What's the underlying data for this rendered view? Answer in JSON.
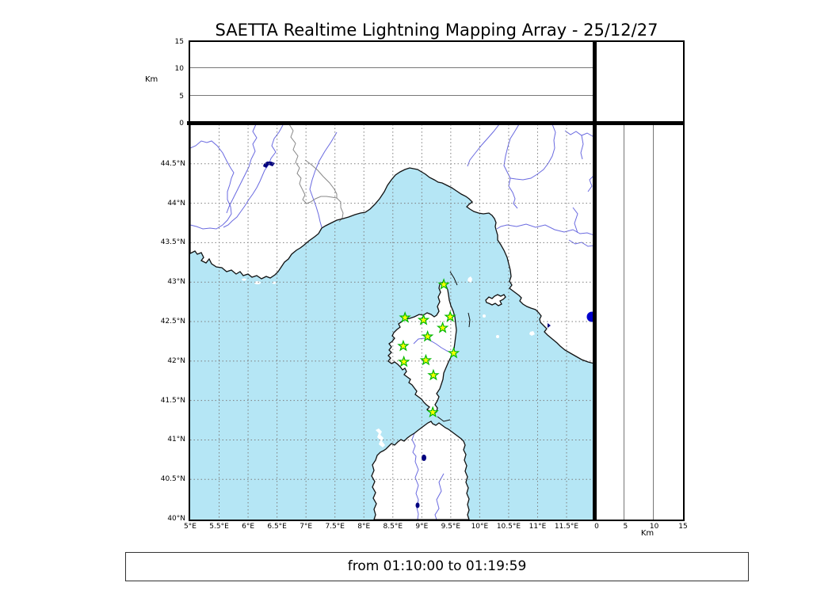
{
  "title": "SAETTA Realtime Lightning Mapping Array - 25/12/27",
  "footer": {
    "time_range_label": "from 01:10:00 to 01:19:59"
  },
  "colors": {
    "sea": "#b5e6f5",
    "land": "#ffffff",
    "coastline": "#111111",
    "river": "#6a6ae0",
    "country_border": "#888888",
    "gridline": "#7e7e7e",
    "panel_gridline": "#777777",
    "lake": "#000080",
    "lake_bolsena_dot": "#0000cc",
    "station_fill": "#ffff00",
    "station_edge": "#00b800"
  },
  "chart_data": {
    "type": "scatter",
    "title": "SAETTA Realtime Lightning Mapping Array - 25/12/27",
    "time_window": "from 01:10:00 to 01:19:59",
    "map_panel": {
      "lon_range": [
        5,
        12
      ],
      "lat_range": [
        40,
        45
      ],
      "grid": true,
      "lon_ticks": [
        5,
        5.5,
        6,
        6.5,
        7,
        7.5,
        8,
        8.5,
        9,
        9.5,
        10,
        10.5,
        11,
        11.5
      ],
      "lon_tick_labels": [
        "5°E",
        "5.5°E",
        "6°E",
        "6.5°E",
        "7°E",
        "7.5°E",
        "8°E",
        "8.5°E",
        "9°E",
        "9.5°E",
        "10°E",
        "10.5°E",
        "11°E",
        "11.5°E"
      ],
      "lat_ticks": [
        44.5,
        44,
        43.5,
        43,
        42.5,
        42,
        41.5,
        41,
        40.5,
        40
      ],
      "lat_tick_labels": [
        "44.5°N",
        "44°N",
        "43.5°N",
        "43°N",
        "42.5°N",
        "42°N",
        "41.5°N",
        "41°N",
        "40.5°N",
        "40°N"
      ]
    },
    "altitude_axes": {
      "unit_label": "Km",
      "range": [
        0,
        15
      ],
      "ticks": [
        0,
        5,
        10,
        15
      ],
      "tick_labels": [
        "0",
        "5",
        "10",
        "15"
      ],
      "gridlines_km": [
        5,
        10
      ]
    },
    "stations": [
      {
        "lon": 9.38,
        "lat": 42.97
      },
      {
        "lon": 8.71,
        "lat": 42.55
      },
      {
        "lon": 9.03,
        "lat": 42.52
      },
      {
        "lon": 9.49,
        "lat": 42.56
      },
      {
        "lon": 9.36,
        "lat": 42.42
      },
      {
        "lon": 9.1,
        "lat": 42.31
      },
      {
        "lon": 8.68,
        "lat": 42.19
      },
      {
        "lon": 9.55,
        "lat": 42.1
      },
      {
        "lon": 9.07,
        "lat": 42.01
      },
      {
        "lon": 8.69,
        "lat": 41.99
      },
      {
        "lon": 9.2,
        "lat": 41.82
      },
      {
        "lon": 9.19,
        "lat": 41.35
      }
    ],
    "lightning_points_top_panel": [],
    "lightning_points_right_panel": [],
    "lightning_points_map": []
  }
}
